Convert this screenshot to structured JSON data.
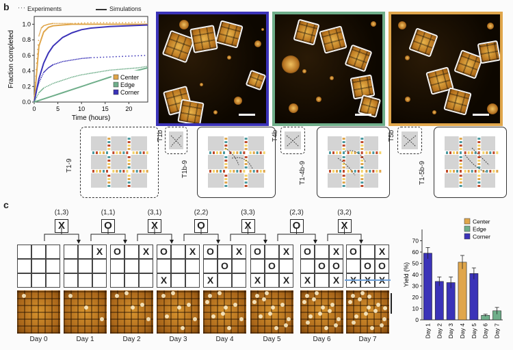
{
  "panel_b": {
    "letter": "b",
    "legend": {
      "experiments": "Experiments",
      "simulations": "Simulations"
    },
    "afm_colors": [
      "#3b33b8",
      "#6fae8a",
      "#e0a64b"
    ],
    "schematic_labels": [
      "T1-9",
      "T1b",
      "T1b-9",
      "T4b",
      "T1-4b-9",
      "T5b",
      "T1-5b-9"
    ]
  },
  "panel_c": {
    "letter": "c",
    "moves": [
      {
        "coord": "(1,3)",
        "symbol": "X"
      },
      {
        "coord": "(1,1)",
        "symbol": "O"
      },
      {
        "coord": "(3,1)",
        "symbol": "X"
      },
      {
        "coord": "(2,2)",
        "symbol": "O"
      },
      {
        "coord": "(3,3)",
        "symbol": "X"
      },
      {
        "coord": "(2,3)",
        "symbol": "O"
      },
      {
        "coord": "(3,2)",
        "symbol": "X"
      }
    ],
    "boards": [
      [
        "",
        "",
        "",
        "",
        "",
        "",
        "",
        "",
        ""
      ],
      [
        "",
        "",
        "X",
        "",
        "",
        "",
        "",
        "",
        ""
      ],
      [
        "O",
        "",
        "X",
        "",
        "",
        "",
        "",
        "",
        ""
      ],
      [
        "O",
        "",
        "X",
        "",
        "",
        "",
        "X",
        "",
        ""
      ],
      [
        "O",
        "",
        "X",
        "",
        "O",
        "",
        "X",
        "",
        ""
      ],
      [
        "O",
        "",
        "X",
        "",
        "O",
        "",
        "X",
        "",
        "X"
      ],
      [
        "O",
        "",
        "X",
        "",
        "O",
        "O",
        "X",
        "",
        "X"
      ],
      [
        "O",
        "",
        "X",
        "",
        "O",
        "O",
        "X",
        "X",
        "X"
      ]
    ],
    "days": [
      "Day 0",
      "Day 1",
      "Day 2",
      "Day 3",
      "Day 4",
      "Day 5",
      "Day 6",
      "Day 7"
    ]
  },
  "chart_data": [
    {
      "type": "line",
      "title": "",
      "xlabel": "Time (hours)",
      "ylabel": "Fraction completed",
      "xlim": [
        0,
        24
      ],
      "ylim": [
        0,
        1.1
      ],
      "xticks": [
        0,
        5,
        10,
        15,
        20
      ],
      "yticks": [
        0.0,
        0.2,
        0.4,
        0.6,
        0.8,
        1.0
      ],
      "legend": [
        "Center",
        "Edge",
        "Corner"
      ],
      "legend_position": "bottom-right",
      "series": [
        {
          "name": "Center simulation",
          "color": "#e0a64b",
          "kind": "simulation",
          "x": [
            0,
            1,
            2,
            3,
            4,
            6,
            8,
            12,
            16,
            20,
            24
          ],
          "y": [
            0,
            0.72,
            0.9,
            0.96,
            0.98,
            0.99,
            1.0,
            1.0,
            1.0,
            1.0,
            1.0
          ]
        },
        {
          "name": "Corner simulation",
          "color": "#3b33b8",
          "kind": "simulation",
          "x": [
            0,
            1,
            2,
            3,
            4,
            6,
            8,
            10,
            12,
            16,
            20,
            24
          ],
          "y": [
            0,
            0.3,
            0.5,
            0.63,
            0.72,
            0.83,
            0.89,
            0.93,
            0.95,
            0.97,
            0.98,
            0.99
          ]
        },
        {
          "name": "Edge simulation",
          "color": "#6fae8a",
          "kind": "simulation",
          "x": [
            0,
            2,
            4,
            6,
            8,
            10,
            12,
            14,
            16,
            18,
            20,
            22,
            24
          ],
          "y": [
            0,
            0.04,
            0.08,
            0.12,
            0.16,
            0.2,
            0.24,
            0.28,
            0.32,
            0.35,
            0.38,
            0.41,
            0.44
          ]
        },
        {
          "name": "Center experiment",
          "color": "#e0a64b",
          "kind": "experiment",
          "x": [
            0,
            0.5,
            1,
            1.5,
            2,
            3,
            4,
            6,
            8,
            12,
            16,
            20,
            24
          ],
          "y": [
            0,
            0.5,
            0.85,
            0.95,
            0.98,
            1.0,
            1.01,
            1.01,
            1.01,
            1.02,
            1.02,
            1.02,
            1.03
          ]
        },
        {
          "name": "Corner experiment",
          "color": "#3b33b8",
          "kind": "experiment",
          "x": [
            0,
            0.5,
            1,
            2,
            3,
            4,
            6,
            8,
            10,
            12,
            16,
            20,
            24
          ],
          "y": [
            0,
            0.15,
            0.25,
            0.38,
            0.44,
            0.48,
            0.52,
            0.54,
            0.56,
            0.57,
            0.58,
            0.59,
            0.6
          ]
        },
        {
          "name": "Edge experiment",
          "color": "#6fae8a",
          "kind": "experiment",
          "x": [
            0,
            1,
            2,
            4,
            6,
            8,
            10,
            12,
            14,
            16,
            18,
            20,
            22,
            24
          ],
          "y": [
            0,
            0.12,
            0.18,
            0.24,
            0.28,
            0.32,
            0.35,
            0.37,
            0.39,
            0.41,
            0.42,
            0.43,
            0.44,
            0.46
          ]
        }
      ]
    },
    {
      "type": "bar",
      "title": "",
      "xlabel": "",
      "ylabel": "Yield (%)",
      "ylim": [
        0,
        80
      ],
      "yticks": [
        0,
        10,
        20,
        30,
        40,
        50,
        60,
        70
      ],
      "categories": [
        "Day 1",
        "Day 2",
        "Day 3",
        "Day 4",
        "Day 5",
        "Day 6",
        "Day 7"
      ],
      "values": [
        59,
        34,
        33,
        51,
        41,
        4,
        8
      ],
      "errors": [
        5,
        4,
        5,
        6,
        5,
        1,
        3
      ],
      "bar_colors": [
        "#3b33b8",
        "#3b33b8",
        "#3b33b8",
        "#e0a64b",
        "#3b33b8",
        "#6fae8a",
        "#6fae8a"
      ],
      "legend": [
        {
          "name": "Center",
          "color": "#e0a64b"
        },
        {
          "name": "Edge",
          "color": "#6fae8a"
        },
        {
          "name": "Corner",
          "color": "#3b33b8"
        }
      ],
      "legend_position": "top-right"
    }
  ]
}
